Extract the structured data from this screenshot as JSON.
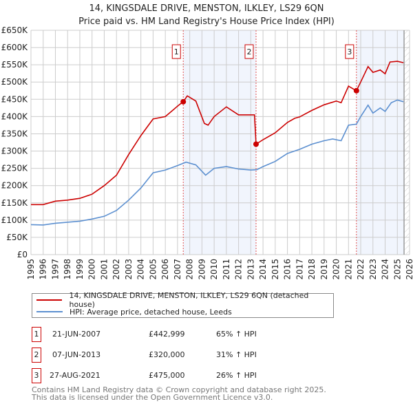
{
  "title": "14, KINGSDALE DRIVE, MENSTON, ILKLEY, LS29 6QN",
  "subtitle": "Price paid vs. HM Land Registry's House Price Index (HPI)",
  "chart_data": {
    "type": "line",
    "title": "14, KINGSDALE DRIVE, MENSTON, ILKLEY, LS29 6QN",
    "subtitle": "Price paid vs. HM Land Registry's House Price Index (HPI)",
    "xlim": [
      1995,
      2026
    ],
    "ylim": [
      0,
      650000
    ],
    "x_ticks": [
      "1995",
      "1996",
      "1997",
      "1998",
      "1999",
      "2000",
      "2001",
      "2002",
      "2003",
      "2004",
      "2005",
      "2006",
      "2007",
      "2008",
      "2009",
      "2010",
      "2011",
      "2012",
      "2013",
      "2014",
      "2015",
      "2016",
      "2017",
      "2018",
      "2019",
      "2020",
      "2021",
      "2022",
      "2023",
      "2024",
      "2025",
      "2026"
    ],
    "y_ticks": [
      "£0",
      "£50K",
      "£100K",
      "£150K",
      "£200K",
      "£250K",
      "£300K",
      "£350K",
      "£400K",
      "£450K",
      "£500K",
      "£550K",
      "£600K",
      "£650K"
    ],
    "grid": true,
    "legend_placement": "below",
    "series": [
      {
        "name": "14, KINGSDALE DRIVE, MENSTON, ILKLEY, LS29 6QN (detached house)",
        "color": "#cc0000",
        "x": [
          1995,
          1996,
          1997,
          1998,
          1999,
          2000,
          2001,
          2002,
          2003,
          2004,
          2005,
          2006,
          2007,
          2007.47,
          2007.8,
          2008.5,
          2009.2,
          2009.5,
          2010,
          2011,
          2012,
          2013.3,
          2013.43,
          2014,
          2015,
          2016,
          2016.6,
          2017,
          2018,
          2019,
          2020,
          2020.4,
          2021,
          2021.4,
          2021.65,
          2022,
          2022.6,
          2023,
          2023.6,
          2024,
          2024.4,
          2025,
          2025.5
        ],
        "y": [
          145000,
          145000,
          155000,
          158000,
          163000,
          175000,
          200000,
          230000,
          290000,
          345000,
          393000,
          400000,
          430000,
          442999,
          460000,
          445000,
          380000,
          375000,
          400000,
          428000,
          405000,
          405000,
          320000,
          333000,
          353000,
          383000,
          395000,
          399000,
          418000,
          434000,
          445000,
          440000,
          488000,
          480000,
          475000,
          500000,
          545000,
          528000,
          535000,
          524000,
          558000,
          560000,
          556000
        ]
      },
      {
        "name": "HPI: Average price, detached house, Leeds",
        "color": "#5b8fd0",
        "x": [
          1995,
          1996,
          1997,
          1998,
          1999,
          2000,
          2001,
          2002,
          2003,
          2004,
          2005,
          2006,
          2007,
          2007.7,
          2008.5,
          2009.3,
          2010,
          2011,
          2012,
          2013,
          2013.5,
          2014,
          2015,
          2016,
          2017,
          2018,
          2019,
          2019.7,
          2020.4,
          2021,
          2021.65,
          2022,
          2022.6,
          2023,
          2023.6,
          2024,
          2024.5,
          2025,
          2025.5
        ],
        "y": [
          87000,
          86000,
          91000,
          94000,
          97000,
          103000,
          111000,
          128000,
          158000,
          193000,
          237000,
          245000,
          258000,
          268000,
          260000,
          230000,
          250000,
          255000,
          248000,
          245000,
          246000,
          255000,
          270000,
          293000,
          305000,
          320000,
          330000,
          335000,
          330000,
          375000,
          378000,
          400000,
          433000,
          410000,
          425000,
          415000,
          440000,
          448000,
          443000
        ]
      }
    ],
    "sales": [
      {
        "label": "1",
        "x": 2007.47,
        "y": 442999
      },
      {
        "label": "2",
        "x": 2013.43,
        "y": 320000
      },
      {
        "label": "3",
        "x": 2021.65,
        "y": 475000
      }
    ]
  },
  "legend": {
    "property": "14, KINGSDALE DRIVE, MENSTON, ILKLEY, LS29 6QN (detached house)",
    "hpi": "HPI: Average price, detached house, Leeds"
  },
  "transactions": [
    {
      "num": "1",
      "date": "21-JUN-2007",
      "price": "£442,999",
      "hpi": "65% ↑ HPI"
    },
    {
      "num": "2",
      "date": "07-JUN-2013",
      "price": "£320,000",
      "hpi": "31% ↑ HPI"
    },
    {
      "num": "3",
      "date": "27-AUG-2021",
      "price": "£475,000",
      "hpi": "26% ↑ HPI"
    }
  ],
  "footer": {
    "line1": "Contains HM Land Registry data © Crown copyright and database right 2025.",
    "line2": "This data is licensed under the Open Government Licence v3.0."
  }
}
